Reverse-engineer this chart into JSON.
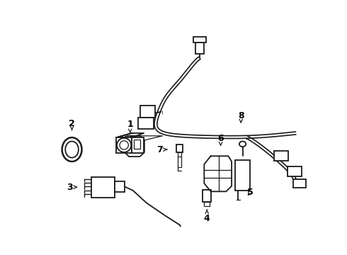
{
  "background_color": "#ffffff",
  "line_color": "#1a1a1a",
  "line_width": 1.3,
  "label_fontsize": 9,
  "figsize": [
    4.9,
    3.6
  ],
  "dpi": 100
}
